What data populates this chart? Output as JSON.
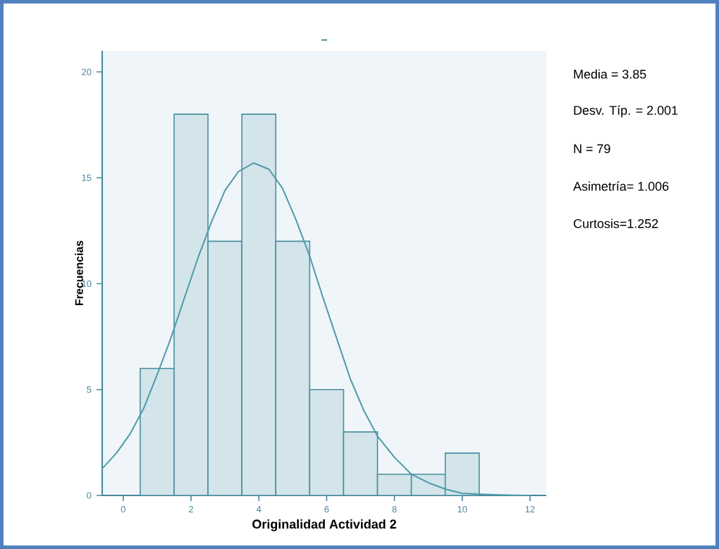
{
  "chart_data": {
    "type": "histogram",
    "title": "–",
    "xlabel": "Originalidad Actividad 2",
    "ylabel": "Frecuencias",
    "bins": [
      0.5,
      1.5,
      2.5,
      3.5,
      4.5,
      5.5,
      6.5,
      7.5,
      8.5,
      9.5,
      10.5
    ],
    "values": [
      6,
      18,
      12,
      18,
      12,
      5,
      3,
      1,
      1,
      2
    ],
    "color": "#d3e4ea",
    "series": [
      {
        "type": "line",
        "color": "#4e9aaa",
        "x": [
          -0.6,
          -0.2,
          0.2,
          0.6,
          1,
          1.4,
          1.8,
          2.2,
          2.6,
          3,
          3.4,
          3.85,
          4.3,
          4.7,
          5.1,
          5.5,
          5.9,
          6.3,
          6.7,
          7.1,
          7.5,
          8,
          8.5,
          9,
          9.5,
          10,
          10.5,
          11,
          11.5,
          12
        ],
        "values": [
          1.3,
          2,
          2.9,
          4.1,
          5.7,
          7.4,
          9.3,
          11.2,
          12.9,
          14.4,
          15.3,
          15.7,
          15.4,
          14.5,
          13,
          11.3,
          9.3,
          7.4,
          5.5,
          4,
          2.8,
          1.8,
          1,
          0.6,
          0.3,
          0.1,
          0.06,
          0.03,
          0.01,
          0
        ]
      }
    ],
    "xlim": [
      -0.62,
      12.48
    ],
    "ylim": [
      0,
      21
    ],
    "xticks": [
      0,
      2,
      4,
      6,
      8,
      10,
      12
    ],
    "yticks": [
      0,
      5,
      10,
      15,
      20
    ],
    "grid": false,
    "annotations": [
      "Media = 3.85",
      "Desv. Típ. = 2.001",
      "N = 79",
      "Asimetría= 1.006",
      "Curtosis=1.252"
    ]
  }
}
